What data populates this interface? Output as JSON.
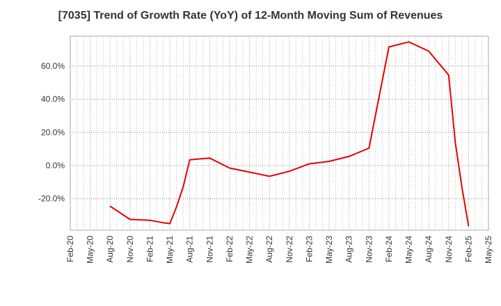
{
  "chart_data": {
    "type": "line",
    "title": "[7035]  Trend of Growth Rate (YoY) of 12-Month Moving Sum of Revenues",
    "xlabel": "",
    "ylabel": "",
    "x_tick_labels": [
      "Feb-20",
      "May-20",
      "Aug-20",
      "Nov-20",
      "Feb-21",
      "May-21",
      "Aug-21",
      "Nov-21",
      "Feb-22",
      "May-22",
      "Aug-22",
      "Nov-22",
      "Feb-23",
      "May-23",
      "Aug-23",
      "Nov-23",
      "Feb-24",
      "May-24",
      "Aug-24",
      "Nov-24",
      "Feb-25",
      "May-25"
    ],
    "y_ticks": [
      -20,
      0,
      20,
      40,
      60
    ],
    "y_tick_labels": [
      "-20.0%",
      "0.0%",
      "20.0%",
      "40.0%",
      "60.0%"
    ],
    "ylim": [
      -39,
      78
    ],
    "xlim": [
      "Feb-20",
      "May-25"
    ],
    "grid": true,
    "series": [
      {
        "color": "#e60000",
        "x": [
          "Aug-20",
          "Nov-20",
          "Feb-21",
          "Apr-21",
          "May-21",
          "Jun-21",
          "Jul-21",
          "Aug-21",
          "Nov-21",
          "Feb-22",
          "May-22",
          "Aug-22",
          "Nov-22",
          "Feb-23",
          "May-23",
          "Aug-23",
          "Nov-23",
          "Feb-24",
          "May-24",
          "Aug-24",
          "Nov-24",
          "Dec-24",
          "Jan-25",
          "Feb-25"
        ],
        "values": [
          -24.5,
          -32.5,
          -33.0,
          -34.5,
          -35.0,
          -25.0,
          -13.0,
          3.5,
          4.5,
          -1.5,
          -4.0,
          -6.5,
          -3.5,
          1.0,
          2.5,
          5.5,
          10.5,
          71.5,
          74.5,
          69.0,
          54.5,
          14.0,
          -13.0,
          -36.5
        ]
      }
    ]
  }
}
